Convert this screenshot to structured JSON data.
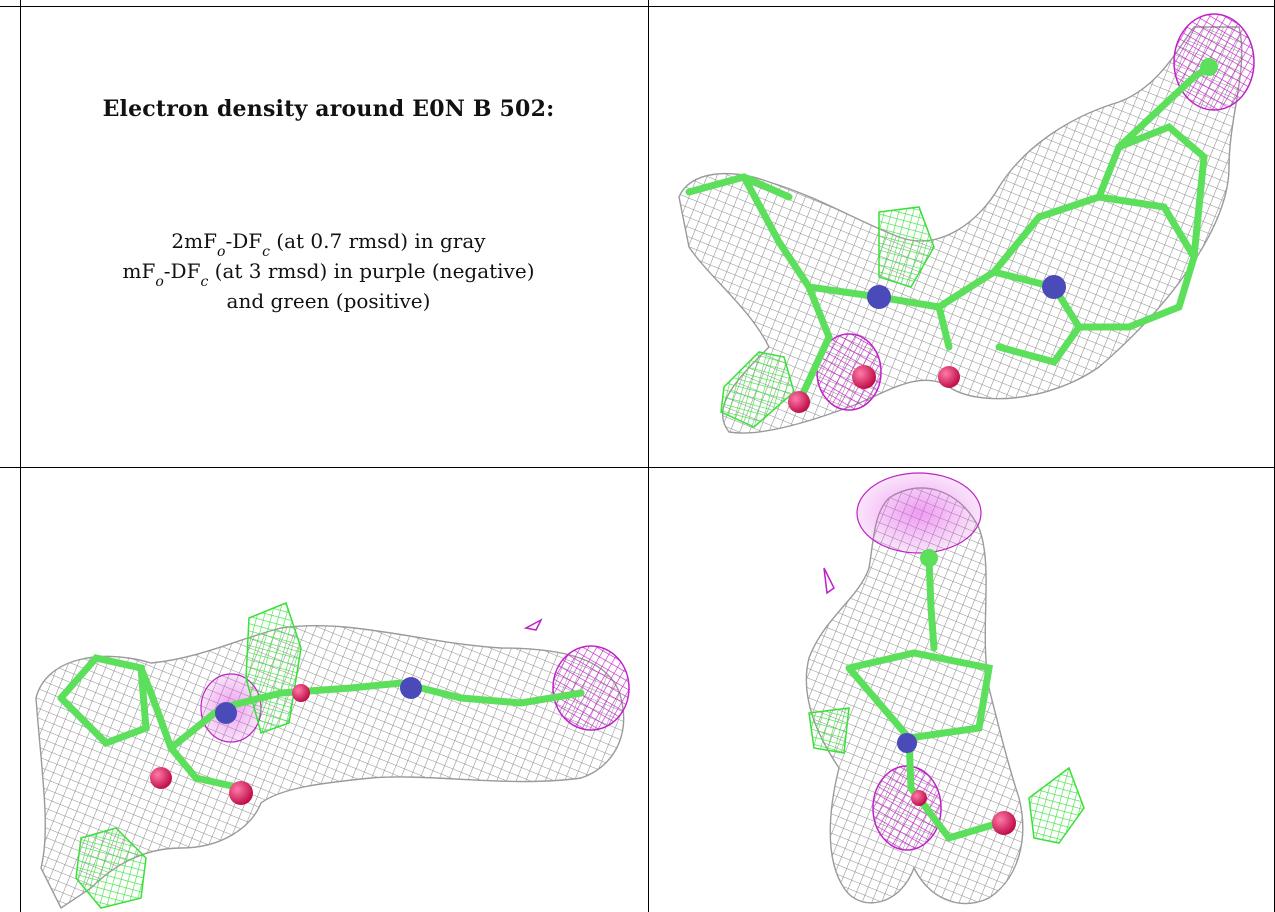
{
  "caption": {
    "title": "Electron density around E0N B 502:",
    "line1_pre": "2mF",
    "line1_sub1": "o",
    "line1_mid": "-DF",
    "line1_sub2": "c",
    "line1_post": " (at 0.7 rmsd) in gray",
    "line2_pre": "mF",
    "line2_sub1": "o",
    "line2_mid": "-DF",
    "line2_sub2": "c",
    "line2_post": " (at 3 rmsd) in purple (negative)",
    "line3": "and green (positive)"
  },
  "colors": {
    "mesh_gray": "#9a9a9a",
    "mesh_purple": "#c020c8",
    "mesh_green": "#40e040",
    "bond_green": "#5ce05c",
    "nitrogen_blue": "#4a4ab8",
    "oxygen_red": "#e0206a"
  },
  "panels": [
    {
      "name": "density-view-1",
      "icon": "molecule-density-view"
    },
    {
      "name": "density-view-2",
      "icon": "molecule-density-view"
    },
    {
      "name": "density-view-3",
      "icon": "molecule-density-view"
    }
  ]
}
